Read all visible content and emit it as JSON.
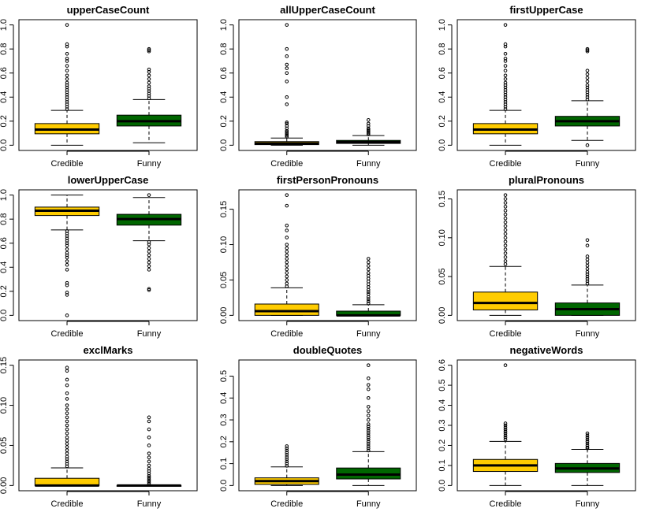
{
  "chart_data": {
    "type": "boxplot",
    "colors": {
      "Credible": "#FFCC00",
      "Funny": "#006600"
    },
    "panels": [
      {
        "title": "upperCaseCount",
        "ylim": [
          0,
          1
        ],
        "yticks": [
          "0.0",
          "0.2",
          "0.4",
          "0.6",
          "0.8",
          "1.0"
        ],
        "groups": [
          {
            "name": "Credible",
            "low": 0.0,
            "q1": 0.095,
            "median": 0.13,
            "q3": 0.18,
            "high": 0.29,
            "outliers": [
              0.3,
              0.32,
              0.34,
              0.36,
              0.38,
              0.4,
              0.42,
              0.44,
              0.46,
              0.48,
              0.5,
              0.52,
              0.55,
              0.58,
              0.62,
              0.66,
              0.7,
              0.72,
              0.76,
              0.82,
              0.84,
              1.0
            ]
          },
          {
            "name": "Funny",
            "low": 0.02,
            "q1": 0.16,
            "median": 0.2,
            "q3": 0.25,
            "high": 0.38,
            "outliers": [
              0.39,
              0.41,
              0.43,
              0.45,
              0.47,
              0.49,
              0.52,
              0.55,
              0.58,
              0.61,
              0.63,
              0.78,
              0.79,
              0.8
            ]
          }
        ]
      },
      {
        "title": "allUpperCaseCount",
        "ylim": [
          0,
          1
        ],
        "yticks": [
          "0.0",
          "0.2",
          "0.4",
          "0.6",
          "0.8",
          "1.0"
        ],
        "groups": [
          {
            "name": "Credible",
            "low": 0.0,
            "q1": 0.005,
            "median": 0.015,
            "q3": 0.03,
            "high": 0.06,
            "outliers": [
              0.07,
              0.08,
              0.09,
              0.1,
              0.11,
              0.12,
              0.14,
              0.16,
              0.18,
              0.19,
              0.34,
              0.4,
              0.53,
              0.6,
              0.64,
              0.67,
              0.74,
              0.8,
              1.0
            ]
          },
          {
            "name": "Funny",
            "low": 0.0,
            "q1": 0.015,
            "median": 0.025,
            "q3": 0.04,
            "high": 0.08,
            "outliers": [
              0.09,
              0.1,
              0.11,
              0.12,
              0.13,
              0.14,
              0.16,
              0.18,
              0.21
            ]
          }
        ]
      },
      {
        "title": "firstUpperCase",
        "ylim": [
          0,
          1
        ],
        "yticks": [
          "0.0",
          "0.2",
          "0.4",
          "0.6",
          "0.8",
          "1.0"
        ],
        "groups": [
          {
            "name": "Credible",
            "low": 0.0,
            "q1": 0.095,
            "median": 0.13,
            "q3": 0.18,
            "high": 0.29,
            "outliers": [
              0.3,
              0.32,
              0.34,
              0.36,
              0.38,
              0.4,
              0.42,
              0.44,
              0.46,
              0.48,
              0.5,
              0.52,
              0.55,
              0.58,
              0.62,
              0.66,
              0.7,
              0.72,
              0.76,
              0.82,
              0.84,
              1.0
            ]
          },
          {
            "name": "Funny",
            "low": 0.04,
            "q1": 0.16,
            "median": 0.2,
            "q3": 0.24,
            "high": 0.37,
            "outliers": [
              0.0,
              0.38,
              0.4,
              0.42,
              0.44,
              0.46,
              0.48,
              0.5,
              0.53,
              0.56,
              0.59,
              0.62,
              0.78,
              0.79,
              0.8
            ]
          }
        ]
      },
      {
        "title": "lowerUpperCase",
        "ylim": [
          0,
          1
        ],
        "yticks": [
          "0.0",
          "0.2",
          "0.4",
          "0.6",
          "0.8",
          "1.0"
        ],
        "groups": [
          {
            "name": "Credible",
            "low": 0.71,
            "q1": 0.83,
            "median": 0.87,
            "q3": 0.9,
            "high": 1.0,
            "outliers": [
              0.0,
              0.17,
              0.19,
              0.25,
              0.27,
              0.38,
              0.42,
              0.45,
              0.48,
              0.5,
              0.52,
              0.55,
              0.58,
              0.6,
              0.62,
              0.64,
              0.66,
              0.68,
              0.7
            ]
          },
          {
            "name": "Funny",
            "low": 0.62,
            "q1": 0.75,
            "median": 0.8,
            "q3": 0.84,
            "high": 0.98,
            "outliers": [
              0.21,
              0.22,
              0.38,
              0.41,
              0.44,
              0.47,
              0.5,
              0.53,
              0.56,
              0.59,
              0.61,
              1.0
            ]
          }
        ]
      },
      {
        "title": "firstPersonPronouns",
        "ylim": [
          0,
          0.17
        ],
        "yticks": [
          "0.00",
          "0.05",
          "0.10",
          "0.15"
        ],
        "groups": [
          {
            "name": "Credible",
            "low": 0.0,
            "q1": 0.0,
            "median": 0.006,
            "q3": 0.016,
            "high": 0.039,
            "outliers": [
              0.041,
              0.045,
              0.05,
              0.055,
              0.06,
              0.065,
              0.07,
              0.075,
              0.08,
              0.085,
              0.09,
              0.095,
              0.1,
              0.11,
              0.12,
              0.127,
              0.155,
              0.17
            ]
          },
          {
            "name": "Funny",
            "low": 0.0,
            "q1": 0.0,
            "median": 0.0,
            "q3": 0.006,
            "high": 0.015,
            "outliers": [
              0.017,
              0.02,
              0.023,
              0.026,
              0.03,
              0.033,
              0.036,
              0.04,
              0.044,
              0.048,
              0.052,
              0.056,
              0.06,
              0.065,
              0.07,
              0.075,
              0.08
            ]
          }
        ]
      },
      {
        "title": "pluralPronouns",
        "ylim": [
          0,
          0.155
        ],
        "yticks": [
          "0.00",
          "0.05",
          "0.10",
          "0.15"
        ],
        "groups": [
          {
            "name": "Credible",
            "low": 0.0,
            "q1": 0.007,
            "median": 0.016,
            "q3": 0.03,
            "high": 0.063,
            "outliers": [
              0.066,
              0.07,
              0.075,
              0.08,
              0.085,
              0.09,
              0.095,
              0.1,
              0.105,
              0.11,
              0.115,
              0.12,
              0.125,
              0.13,
              0.135,
              0.14,
              0.145,
              0.15,
              0.155
            ]
          },
          {
            "name": "Funny",
            "low": 0.0,
            "q1": 0.0,
            "median": 0.008,
            "q3": 0.016,
            "high": 0.039,
            "outliers": [
              0.041,
              0.044,
              0.047,
              0.05,
              0.053,
              0.056,
              0.06,
              0.064,
              0.068,
              0.072,
              0.076,
              0.09,
              0.097
            ]
          }
        ]
      },
      {
        "title": "exclMarks",
        "ylim": [
          0,
          0.15
        ],
        "yticks": [
          "0.00",
          "0.05",
          "0.10",
          "0.15"
        ],
        "groups": [
          {
            "name": "Credible",
            "low": 0.0,
            "q1": 0.0,
            "median": 0.0,
            "q3": 0.009,
            "high": 0.022,
            "outliers": [
              0.024,
              0.027,
              0.03,
              0.033,
              0.036,
              0.04,
              0.044,
              0.048,
              0.052,
              0.056,
              0.06,
              0.065,
              0.07,
              0.075,
              0.08,
              0.085,
              0.09,
              0.095,
              0.1,
              0.108,
              0.115,
              0.125,
              0.132,
              0.143,
              0.147
            ]
          },
          {
            "name": "Funny",
            "low": 0.0,
            "q1": 0.0,
            "median": 0.0,
            "q3": 0.0,
            "high": 0.0,
            "outliers": [
              0.002,
              0.004,
              0.006,
              0.008,
              0.01,
              0.012,
              0.015,
              0.018,
              0.021,
              0.025,
              0.03,
              0.035,
              0.04,
              0.05,
              0.06,
              0.07,
              0.08,
              0.085
            ]
          }
        ]
      },
      {
        "title": "doubleQuotes",
        "ylim": [
          0,
          0.55
        ],
        "yticks": [
          "0.0",
          "0.1",
          "0.2",
          "0.3",
          "0.4",
          "0.5"
        ],
        "groups": [
          {
            "name": "Credible",
            "low": 0.0,
            "q1": 0.005,
            "median": 0.02,
            "q3": 0.035,
            "high": 0.085,
            "outliers": [
              0.09,
              0.1,
              0.11,
              0.12,
              0.13,
              0.14,
              0.15,
              0.16,
              0.17,
              0.18
            ]
          },
          {
            "name": "Funny",
            "low": 0.0,
            "q1": 0.03,
            "median": 0.05,
            "q3": 0.08,
            "high": 0.155,
            "outliers": [
              0.16,
              0.17,
              0.18,
              0.19,
              0.2,
              0.21,
              0.22,
              0.23,
              0.24,
              0.25,
              0.26,
              0.27,
              0.28,
              0.3,
              0.32,
              0.34,
              0.36,
              0.4,
              0.44,
              0.46,
              0.49,
              0.55
            ]
          }
        ]
      },
      {
        "title": "negativeWords",
        "ylim": [
          0,
          0.6
        ],
        "yticks": [
          "0.0",
          "0.1",
          "0.2",
          "0.3",
          "0.4",
          "0.5",
          "0.6"
        ],
        "groups": [
          {
            "name": "Credible",
            "low": 0.0,
            "q1": 0.07,
            "median": 0.1,
            "q3": 0.13,
            "high": 0.22,
            "outliers": [
              0.23,
              0.24,
              0.25,
              0.26,
              0.27,
              0.28,
              0.29,
              0.3,
              0.31,
              0.6
            ]
          },
          {
            "name": "Funny",
            "low": 0.0,
            "q1": 0.065,
            "median": 0.085,
            "q3": 0.11,
            "high": 0.18,
            "outliers": [
              0.185,
              0.19,
              0.2,
              0.21,
              0.22,
              0.23,
              0.24,
              0.25,
              0.26
            ]
          }
        ]
      }
    ]
  }
}
